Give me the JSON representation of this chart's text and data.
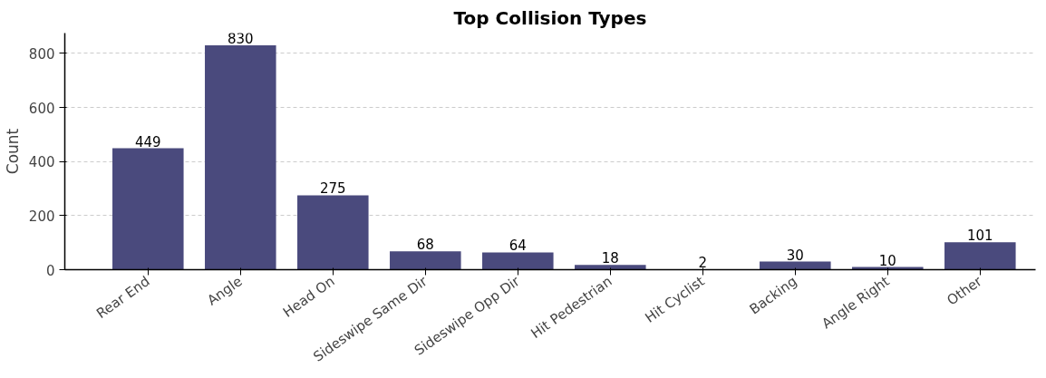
{
  "chart_data": {
    "type": "bar",
    "title": "Top Collision Types",
    "ylabel": "Count",
    "categories": [
      "Rear End",
      "Angle",
      "Head On",
      "Sideswipe Same Dir",
      "Sideswipe Opp Dir",
      "Hit Pedestrian",
      "Hit Cyclist",
      "Backing",
      "Angle Right",
      "Other"
    ],
    "values": [
      449,
      830,
      275,
      68,
      64,
      18,
      2,
      30,
      10,
      101
    ],
    "color": "#4a4a7d",
    "ylim": [
      0,
      875
    ],
    "yticks": [
      0,
      200,
      400,
      600,
      800
    ],
    "grid": "y",
    "data_labels": true
  }
}
